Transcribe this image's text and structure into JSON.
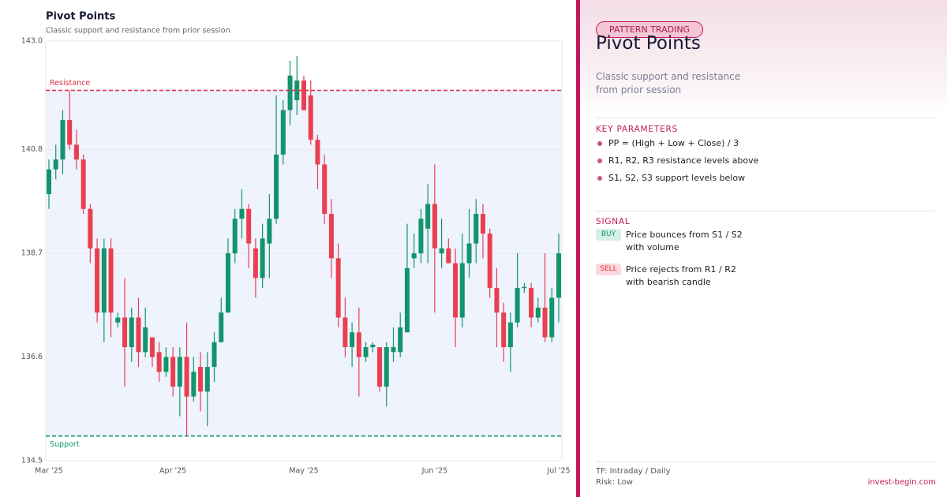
{
  "chart_data": {
    "type": "candlestick",
    "title": "Pivot Points",
    "subtitle": "Classic support and resistance from prior session",
    "categories": [
      "Mar '25",
      null,
      null,
      null,
      null,
      null,
      null,
      null,
      null,
      null,
      null,
      null,
      null,
      null,
      null,
      null,
      null,
      null,
      "Apr '25",
      null,
      null,
      null,
      null,
      null,
      null,
      null,
      null,
      null,
      null,
      null,
      null,
      null,
      null,
      null,
      null,
      null,
      null,
      "May '25",
      null,
      null,
      null,
      null,
      null,
      null,
      null,
      null,
      null,
      null,
      null,
      null,
      null,
      null,
      null,
      null,
      null,
      null,
      "Jun '25",
      null,
      null,
      null,
      null,
      null,
      null,
      null,
      null,
      null,
      null,
      null,
      null,
      null,
      null,
      null,
      null,
      null,
      "Jul '25"
    ],
    "open": [
      139.9,
      140.4,
      140.6,
      141.4,
      140.9,
      140.6,
      139.6,
      138.8,
      137.5,
      138.8,
      137.3,
      137.4,
      136.8,
      137.4,
      136.7,
      137.0,
      136.7,
      136.3,
      136.6,
      136.0,
      136.6,
      135.8,
      136.4,
      135.9,
      136.4,
      136.9,
      137.5,
      138.7,
      139.4,
      139.6,
      138.8,
      138.2,
      138.9,
      139.4,
      140.7,
      141.6,
      141.8,
      142.2,
      141.9,
      141.0,
      140.5,
      139.5,
      138.6,
      137.4,
      136.8,
      137.1,
      136.6,
      136.8,
      136.8,
      136.0,
      136.7,
      136.7,
      137.1,
      138.6,
      138.7,
      139.2,
      139.7,
      138.7,
      138.8,
      138.5,
      137.4,
      138.5,
      138.9,
      139.5,
      139.1,
      138.0,
      137.5,
      136.8,
      137.3,
      138.0,
      138.0,
      137.4,
      137.6,
      137.0,
      137.8
    ],
    "high": [
      140.6,
      140.9,
      141.6,
      142.0,
      141.2,
      140.7,
      139.7,
      139.0,
      139.0,
      139.0,
      137.5,
      138.2,
      137.6,
      137.8,
      137.6,
      137.0,
      136.9,
      136.8,
      136.8,
      136.8,
      137.3,
      136.6,
      136.7,
      136.7,
      137.1,
      137.8,
      139.0,
      139.6,
      140.0,
      139.7,
      139.0,
      139.3,
      139.9,
      141.9,
      141.8,
      142.6,
      142.7,
      142.3,
      142.2,
      141.1,
      140.7,
      139.8,
      138.9,
      137.8,
      137.3,
      137.6,
      136.9,
      136.9,
      136.8,
      136.9,
      137.2,
      137.5,
      139.3,
      139.1,
      139.6,
      140.1,
      140.5,
      139.4,
      139.0,
      138.8,
      139.1,
      139.6,
      139.8,
      139.7,
      139.2,
      138.4,
      137.7,
      137.5,
      138.7,
      138.1,
      138.1,
      137.8,
      138.7,
      138.0,
      139.1
    ],
    "low": [
      139.6,
      140.2,
      140.3,
      140.8,
      140.4,
      139.5,
      138.5,
      137.3,
      136.9,
      137.0,
      137.2,
      136.0,
      136.5,
      136.4,
      136.6,
      136.4,
      136.1,
      136.2,
      135.8,
      135.4,
      135.0,
      135.7,
      135.5,
      135.2,
      136.1,
      136.9,
      137.5,
      138.5,
      139.0,
      138.4,
      137.8,
      138.0,
      138.2,
      139.3,
      140.5,
      141.3,
      141.5,
      141.6,
      140.9,
      140.0,
      139.3,
      138.2,
      137.2,
      136.6,
      136.4,
      135.8,
      136.5,
      136.7,
      135.9,
      135.6,
      136.5,
      136.6,
      137.1,
      138.4,
      138.5,
      138.5,
      137.5,
      138.4,
      138.5,
      136.8,
      137.2,
      138.2,
      138.5,
      138.6,
      137.8,
      136.8,
      136.5,
      136.3,
      137.2,
      137.9,
      137.2,
      137.3,
      136.9,
      136.9,
      137.3
    ],
    "close": [
      140.4,
      140.6,
      141.4,
      140.9,
      140.6,
      139.6,
      138.8,
      137.5,
      138.8,
      137.5,
      137.4,
      136.8,
      137.4,
      136.7,
      137.2,
      136.6,
      136.3,
      136.6,
      136.0,
      136.6,
      135.8,
      136.3,
      135.9,
      136.4,
      136.9,
      137.5,
      138.7,
      139.4,
      139.6,
      138.9,
      138.2,
      139.0,
      139.4,
      140.7,
      141.6,
      142.3,
      142.2,
      141.6,
      141.0,
      140.5,
      139.5,
      138.6,
      137.4,
      136.8,
      137.1,
      136.6,
      136.8,
      136.85,
      136.0,
      136.8,
      136.8,
      137.2,
      138.4,
      138.7,
      139.4,
      139.7,
      138.8,
      138.8,
      138.5,
      137.4,
      138.5,
      138.9,
      139.5,
      139.1,
      138.0,
      137.5,
      136.8,
      137.3,
      138.0,
      138.02,
      137.4,
      137.6,
      137.0,
      137.8,
      138.7
    ],
    "up_color": "#13946c",
    "down_color": "#ea3f50",
    "ylim": [
      134.5,
      143.0
    ],
    "yticks": [
      134.5,
      136.6,
      138.7,
      140.8,
      {
        "value": 143.0,
        "label": "143.0"
      }
    ],
    "grid": true,
    "levels": [
      {
        "label": "Resistance",
        "value": 142.0,
        "color": "#e02f45"
      },
      {
        "label": "Support",
        "value": 135.0,
        "color": "#13946c"
      }
    ]
  },
  "panel": {
    "badge": "PATTERN TRADING",
    "title": "Pivot Points",
    "subtitle_lines": [
      "Classic support and resistance",
      "from prior session"
    ],
    "params_heading": "KEY PARAMETERS",
    "params": [
      "PP = (High + Low + Close) / 3",
      "R1, R2, R3 resistance levels above",
      "S1, S2, S3 support levels below"
    ],
    "signal_heading": "SIGNAL",
    "signals": [
      {
        "tag": "BUY",
        "lines": [
          "Price bounces from S1 / S2",
          "with volume"
        ]
      },
      {
        "tag": "SELL",
        "lines": [
          "Price rejects from R1 / R2",
          "with bearish candle"
        ]
      }
    ],
    "footer": [
      "TF: Intraday / Daily",
      "Risk: Low"
    ],
    "site": "invest-begin.com"
  }
}
